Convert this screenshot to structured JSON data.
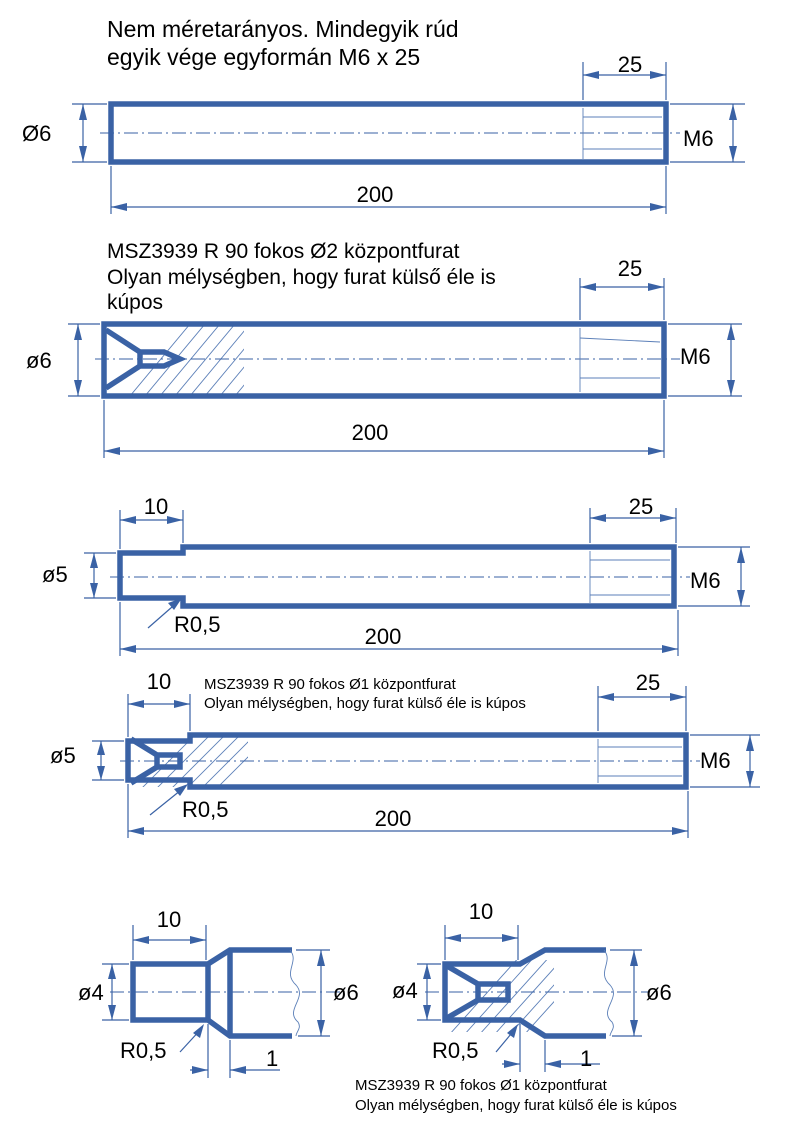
{
  "colors": {
    "outline": "#3a62a5",
    "text": "#000000",
    "background": "#ffffff"
  },
  "header_note": {
    "line1": "Nem méretarányos. Mindegyik rúd",
    "line2": "egyik vége egyformán M6 x 25"
  },
  "rod1": {
    "dia": "Ø6",
    "thread_len": "25",
    "thread": "M6",
    "length": "200"
  },
  "rod2": {
    "note_line1": "MSZ3939 R 90 fokos Ø2 központfurat",
    "note_line2": "Olyan mélységben, hogy furat külső éle is",
    "note_line3": "kúpos",
    "dia": "ø6",
    "thread_len": "25",
    "thread": "M6",
    "length": "200"
  },
  "rod3": {
    "step_len": "10",
    "thread_len": "25",
    "dia": "ø5",
    "thread": "M6",
    "radius": "R0,5",
    "length": "200"
  },
  "rod4": {
    "step_len": "10",
    "note_line1": "MSZ3939 R 90 fokos Ø1 központfurat",
    "note_line2": "Olyan mélységben, hogy furat külső éle is kúpos",
    "thread_len": "25",
    "dia": "ø5",
    "thread": "M6",
    "radius": "R0,5",
    "length": "200"
  },
  "detail_left": {
    "step_len": "10",
    "small_dia": "ø4",
    "big_dia": "ø6",
    "radius": "R0,5",
    "chamfer": "1"
  },
  "detail_right": {
    "step_len": "10",
    "small_dia": "ø4",
    "big_dia": "ø6",
    "radius": "R0,5",
    "chamfer": "1",
    "note_line1": "MSZ3939 R 90 fokos Ø1 központfurat",
    "note_line2": "Olyan mélységben, hogy furat külső éle is kúpos"
  }
}
